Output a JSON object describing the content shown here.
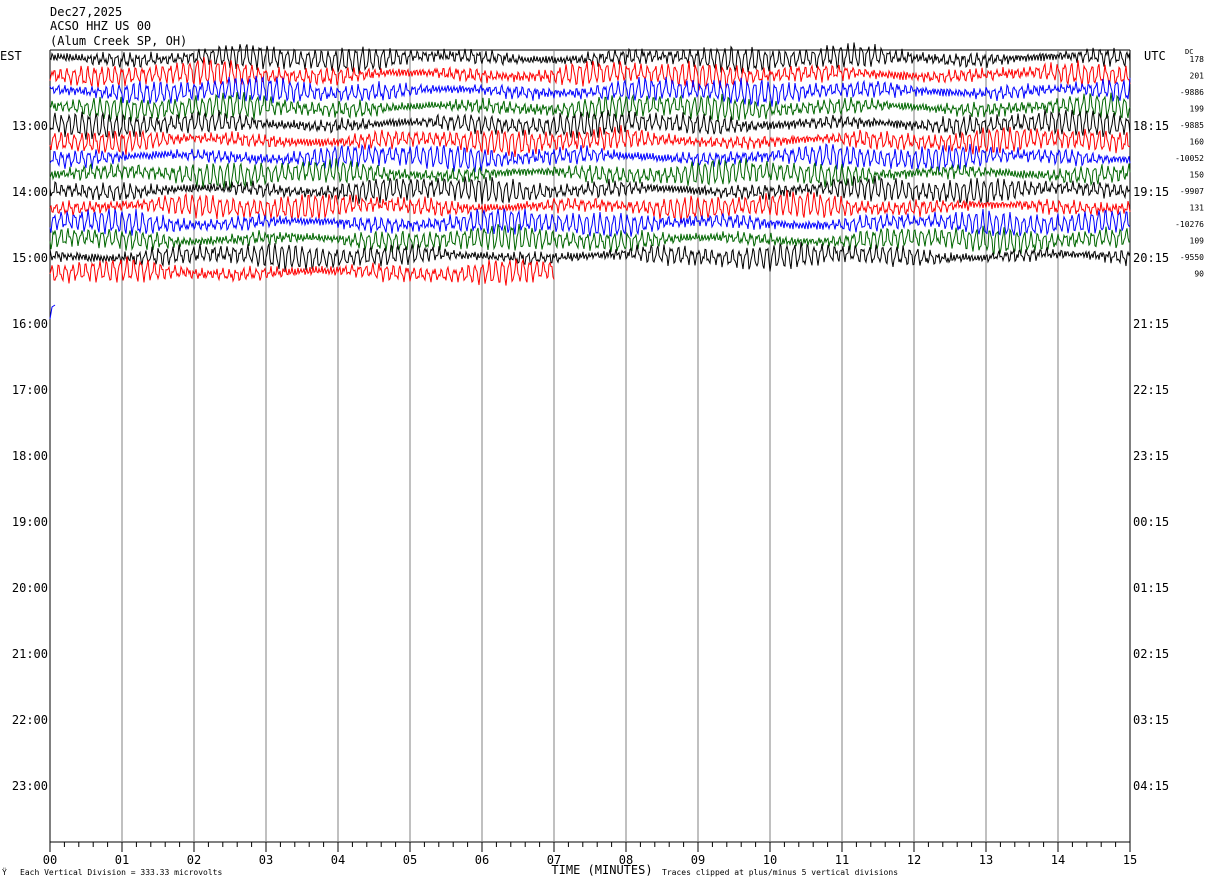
{
  "header": {
    "date": "Dec27,2025",
    "station": "ACSO HHZ US 00",
    "location": "(Alum Creek SP, OH)"
  },
  "left_tz": "EST",
  "right_tz": "UTC",
  "dc_label": "DC",
  "footer": {
    "scale_note": "Each Vertical Division = 333.33 microvolts",
    "clip_note": "Traces clipped at plus/minus 5 vertical divisions",
    "corner_mark": "Ÿ"
  },
  "colors": {
    "trace_cycle": [
      "#000000",
      "#ff0000",
      "#0000ff",
      "#006600"
    ],
    "grid": "#808080"
  },
  "chart_data": {
    "type": "line",
    "title": "ACSO HHZ US 00 (Alum Creek SP, OH) Dec27,2025",
    "xlabel": "TIME (MINUTES)",
    "xlim": [
      0,
      15
    ],
    "x_ticks": [
      "00",
      "01",
      "02",
      "03",
      "04",
      "05",
      "06",
      "07",
      "08",
      "09",
      "10",
      "11",
      "12",
      "13",
      "14",
      "15"
    ],
    "left_hour_labels": [
      "13:00",
      "14:00",
      "15:00",
      "16:00",
      "17:00",
      "18:00",
      "19:00",
      "20:00",
      "21:00",
      "22:00",
      "23:00"
    ],
    "right_hour_labels": [
      "18:15",
      "19:15",
      "20:15",
      "21:15",
      "22:15",
      "23:15",
      "00:15",
      "01:15",
      "02:15",
      "03:15",
      "04:15"
    ],
    "traces_per_hour": 4,
    "traces": [
      {
        "color": "black",
        "dc": "178",
        "end_minute": 15,
        "amplitude": "high"
      },
      {
        "color": "red",
        "dc": "201",
        "end_minute": 15,
        "amplitude": "high"
      },
      {
        "color": "blue",
        "dc": "-9886",
        "end_minute": 15,
        "amplitude": "high"
      },
      {
        "color": "green",
        "dc": "199",
        "end_minute": 15,
        "amplitude": "high"
      },
      {
        "color": "black",
        "dc": "-9885",
        "end_minute": 15,
        "amplitude": "high"
      },
      {
        "color": "red",
        "dc": "160",
        "end_minute": 15,
        "amplitude": "high"
      },
      {
        "color": "blue",
        "dc": "-10052",
        "end_minute": 15,
        "amplitude": "high"
      },
      {
        "color": "green",
        "dc": "150",
        "end_minute": 15,
        "amplitude": "high"
      },
      {
        "color": "black",
        "dc": "-9907",
        "end_minute": 15,
        "amplitude": "high"
      },
      {
        "color": "red",
        "dc": "131",
        "end_minute": 15,
        "amplitude": "high"
      },
      {
        "color": "blue",
        "dc": "-10276",
        "end_minute": 15,
        "amplitude": "high"
      },
      {
        "color": "green",
        "dc": "109",
        "end_minute": 15,
        "amplitude": "high"
      },
      {
        "color": "black",
        "dc": "-9550",
        "end_minute": 15,
        "amplitude": "high"
      },
      {
        "color": "red",
        "dc": "90",
        "end_minute": 7,
        "amplitude": "high"
      },
      {
        "color": "blue",
        "dc": "",
        "end_minute": 0.05,
        "amplitude": "low"
      }
    ]
  }
}
